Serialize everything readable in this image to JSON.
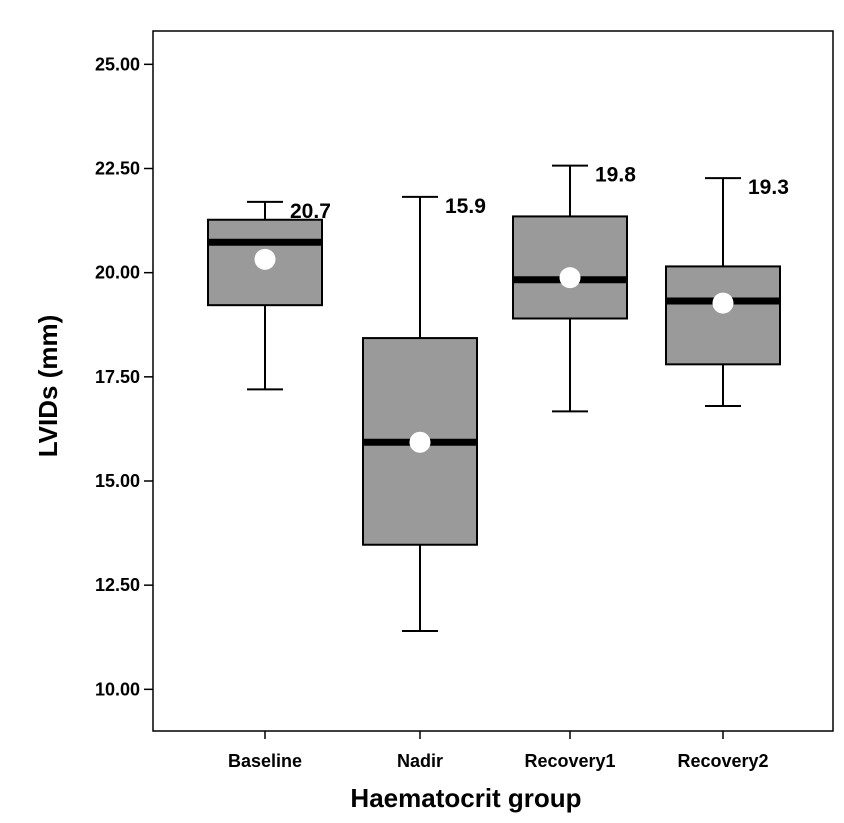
{
  "chart_data": {
    "type": "box",
    "xlabel": "Haematocrit group",
    "ylabel": "LVIDs (mm)",
    "ylim": [
      9.0,
      25.8
    ],
    "yticks": [
      "10.00",
      "12.50",
      "15.00",
      "17.50",
      "20.00",
      "22.50",
      "25.00"
    ],
    "categories": [
      "Baseline",
      "Nadir",
      "Recovery1",
      "Recovery2"
    ],
    "boxes": [
      {
        "name": "Baseline",
        "min": 17.2,
        "q1": 19.22,
        "median": 20.73,
        "q3": 21.27,
        "max": 21.7,
        "mean": 20.32,
        "label": "20.7"
      },
      {
        "name": "Nadir",
        "min": 11.4,
        "q1": 13.47,
        "median": 15.93,
        "q3": 18.43,
        "max": 21.82,
        "mean": 15.93,
        "label": "15.9"
      },
      {
        "name": "Recovery1",
        "min": 16.67,
        "q1": 18.9,
        "median": 19.83,
        "q3": 21.35,
        "max": 22.57,
        "mean": 19.88,
        "label": "19.8"
      },
      {
        "name": "Recovery2",
        "min": 16.8,
        "q1": 17.8,
        "median": 19.32,
        "q3": 20.15,
        "max": 22.27,
        "mean": 19.27,
        "label": "19.3"
      }
    ],
    "colors": {
      "box_fill": "#9a9a9a",
      "median": "#000000",
      "mean_marker": "#ffffff",
      "frame": "#000000"
    }
  }
}
